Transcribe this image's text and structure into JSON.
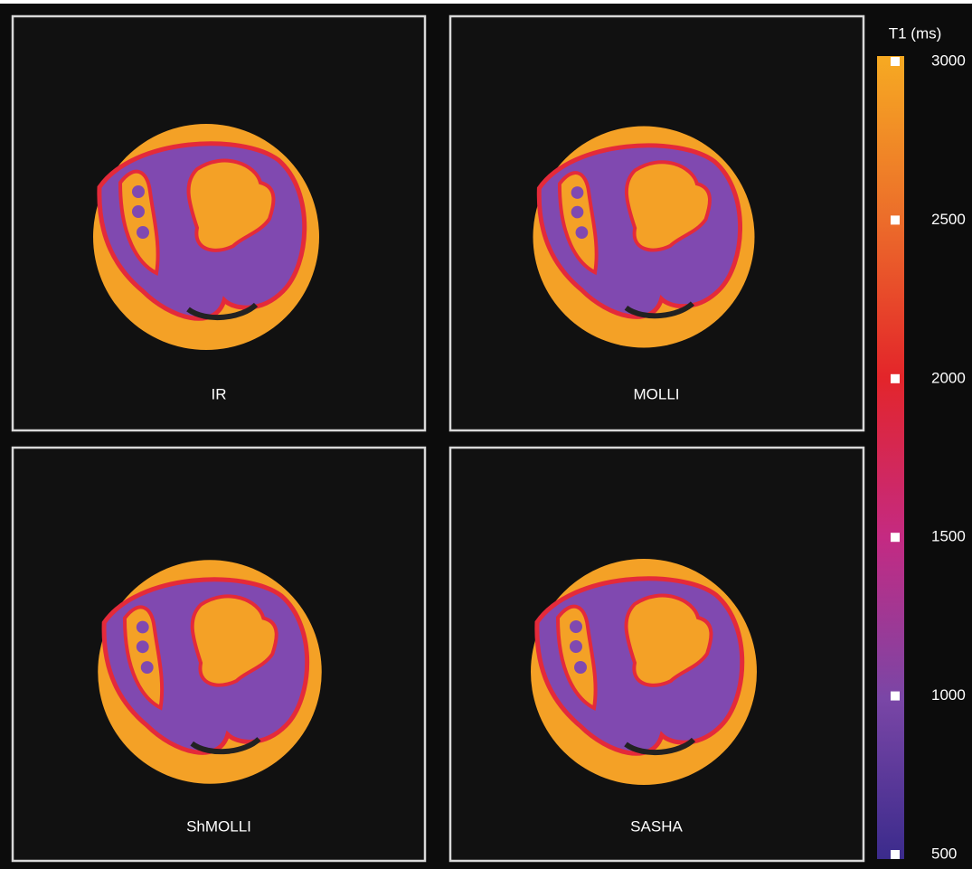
{
  "panels": [
    {
      "label": "IR"
    },
    {
      "label": "MOLLI"
    },
    {
      "label": "ShMOLLI"
    },
    {
      "label": "SASHA"
    }
  ],
  "colorbar": {
    "title": "T1 (ms)",
    "ticks": [
      3000,
      2500,
      2000,
      1500,
      1000,
      500
    ]
  }
}
